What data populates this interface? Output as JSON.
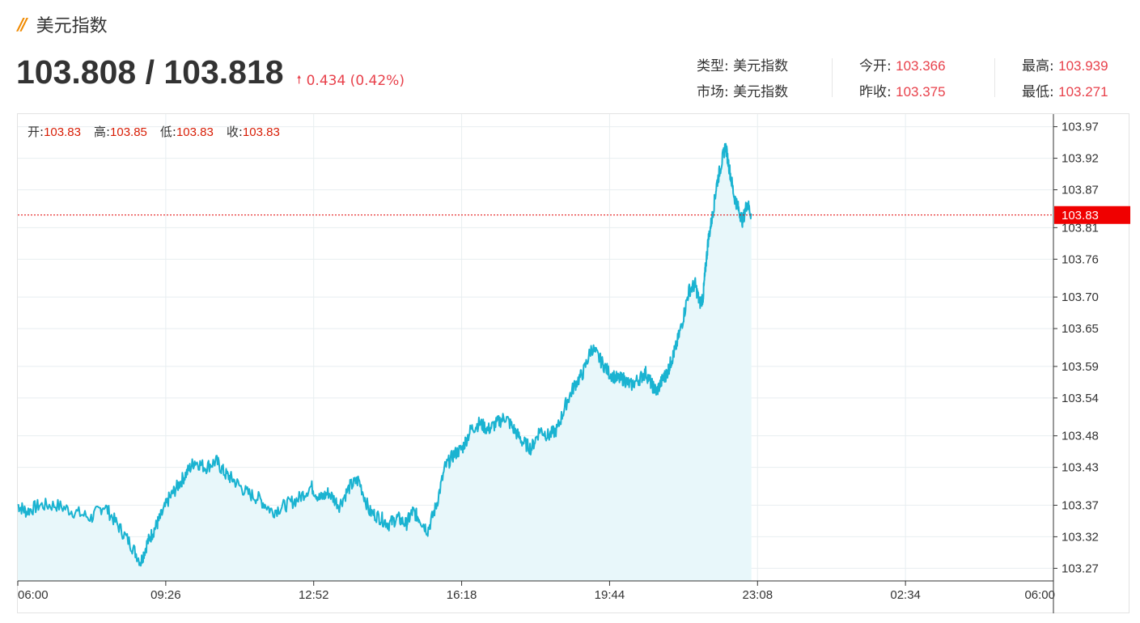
{
  "header": {
    "title": "美元指数",
    "price": "103.808 / 103.818",
    "change": "0.434 (0.42%)"
  },
  "stats": {
    "type_label": "类型:",
    "type_value": "美元指数",
    "market_label": "市场:",
    "market_value": "美元指数",
    "open_label": "今开:",
    "open_value": "103.366",
    "prev_label": "昨收:",
    "prev_value": "103.375",
    "high_label": "最高:",
    "high_value": "103.939",
    "low_label": "最低:",
    "low_value": "103.271"
  },
  "ohlc": {
    "open_label": "开:",
    "open_value": "103.83",
    "high_label": "高:",
    "high_value": "103.85",
    "low_label": "低:",
    "low_value": "103.83",
    "close_label": "收:",
    "close_value": "103.83"
  },
  "colors": {
    "accent_up": "#e8414b",
    "line": "#1ab3d1",
    "area": "#e8f7fa",
    "current_tag": "#f00000"
  },
  "chart_data": {
    "type": "area",
    "x_ticks": [
      "06:00",
      "09:26",
      "12:52",
      "16:18",
      "19:44",
      "23:08",
      "02:34",
      "06:00"
    ],
    "y_ticks": [
      "103.97",
      "103.92",
      "103.87",
      "103.81",
      "103.76",
      "103.70",
      "103.65",
      "103.59",
      "103.54",
      "103.48",
      "103.43",
      "103.37",
      "103.32",
      "103.27"
    ],
    "ylim": [
      103.25,
      103.99
    ],
    "current_value": "103.83",
    "x_unit": "hours since 06:00",
    "series": [
      {
        "x": [
          0,
          0.2,
          0.5,
          0.9,
          1.3,
          1.7,
          2.0,
          2.3,
          2.6,
          2.85,
          3.0,
          3.15,
          3.3,
          3.5,
          3.7,
          3.9,
          4.1,
          4.35,
          4.6,
          4.8,
          5.0,
          5.3,
          5.6,
          5.9,
          6.2,
          6.5,
          6.8,
          7.0,
          7.2,
          7.45,
          7.7,
          7.9,
          8.15,
          8.4,
          8.6,
          8.8,
          9.0,
          9.15,
          9.3,
          9.5,
          9.7,
          9.9,
          10.1,
          10.3,
          10.5,
          10.7,
          10.9,
          11.1,
          11.3,
          11.5,
          11.7,
          11.9,
          12.1,
          12.3,
          12.5,
          12.7,
          12.9,
          13.1,
          13.3,
          13.5,
          13.7,
          13.9,
          14.05,
          14.2,
          14.4,
          14.55,
          14.7,
          14.8,
          14.95,
          15.05,
          15.15,
          15.25,
          15.4,
          15.55,
          15.7
        ],
        "y": [
          103.37,
          103.36,
          103.37,
          103.37,
          103.36,
          103.35,
          103.37,
          103.34,
          103.31,
          103.28,
          103.31,
          103.33,
          103.35,
          103.38,
          103.4,
          103.42,
          103.44,
          103.43,
          103.44,
          103.42,
          103.41,
          103.39,
          103.38,
          103.36,
          103.37,
          103.38,
          103.4,
          103.38,
          103.39,
          103.37,
          103.4,
          103.41,
          103.36,
          103.35,
          103.34,
          103.35,
          103.34,
          103.36,
          103.35,
          103.33,
          103.37,
          103.43,
          103.45,
          103.46,
          103.49,
          103.5,
          103.49,
          103.5,
          103.51,
          103.49,
          103.47,
          103.46,
          103.49,
          103.48,
          103.49,
          103.53,
          103.56,
          103.58,
          103.62,
          103.6,
          103.58,
          103.57,
          103.57,
          103.56,
          103.57,
          103.58,
          103.56,
          103.55,
          103.57,
          103.58,
          103.6,
          103.62,
          103.66,
          103.71,
          103.72
        ]
      }
    ],
    "series_tail": {
      "x": [
        15.8,
        15.88,
        15.93,
        16.0,
        16.1,
        16.2,
        16.3,
        16.4,
        16.5,
        16.6,
        16.7,
        16.8,
        16.9,
        17.0
      ],
      "y": [
        103.69,
        103.7,
        103.74,
        103.79,
        103.83,
        103.88,
        103.91,
        103.94,
        103.9,
        103.86,
        103.84,
        103.82,
        103.85,
        103.83
      ]
    }
  }
}
